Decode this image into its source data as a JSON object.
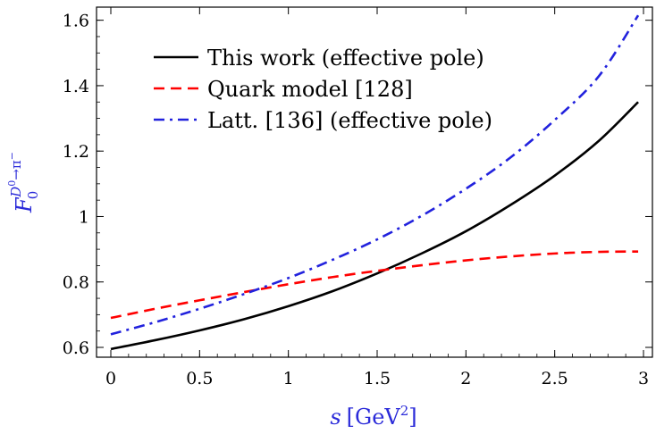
{
  "chart_data": {
    "type": "line",
    "title": "",
    "xlabel": {
      "main": "s",
      "unit_open": "[GeV",
      "unit_sup": "2",
      "unit_close": "]"
    },
    "ylabel": {
      "base": "F",
      "sub": "0",
      "sup_particle": "D",
      "sup_index": "0",
      "sup_arrow": "→π",
      "sup_charge": "−"
    },
    "xlim": [
      0,
      3
    ],
    "ylim": [
      0.57,
      1.64
    ],
    "x_ticks": [
      0,
      0.5,
      1,
      1.5,
      2,
      2.5,
      3
    ],
    "x_tick_labels": [
      "0",
      "0.5",
      "1",
      "1.5",
      "2",
      "2.5",
      "3"
    ],
    "y_ticks": [
      0.6,
      0.8,
      1.0,
      1.2,
      1.4,
      1.6
    ],
    "y_tick_labels": [
      "0.6",
      "0.8",
      "1",
      "1.2",
      "1.4",
      "1.6"
    ],
    "grid": false,
    "legend_position": "top-left",
    "series": [
      {
        "name": "This work (effective pole)",
        "color": "#000000",
        "dash": "solid",
        "x": [
          0,
          0.25,
          0.5,
          0.75,
          1.0,
          1.25,
          1.5,
          1.75,
          2.0,
          2.25,
          2.5,
          2.75,
          2.97
        ],
        "values": [
          0.595,
          0.622,
          0.652,
          0.686,
          0.726,
          0.772,
          0.826,
          0.887,
          0.955,
          1.035,
          1.125,
          1.232,
          1.35
        ]
      },
      {
        "name": "Quark model [128]",
        "color": "#ff0000",
        "dash": "dashed",
        "x": [
          0,
          0.25,
          0.5,
          0.75,
          1.0,
          1.25,
          1.5,
          1.75,
          2.0,
          2.25,
          2.5,
          2.75,
          2.97
        ],
        "values": [
          0.69,
          0.718,
          0.744,
          0.769,
          0.793,
          0.815,
          0.834,
          0.851,
          0.866,
          0.878,
          0.887,
          0.892,
          0.893
        ]
      },
      {
        "name": "Latt. [136] (effective pole)",
        "color": "#2222dd",
        "dash": "dashdot",
        "x": [
          0,
          0.25,
          0.5,
          0.75,
          1.0,
          1.25,
          1.5,
          1.75,
          2.0,
          2.25,
          2.5,
          2.75,
          2.97
        ],
        "values": [
          0.64,
          0.677,
          0.718,
          0.763,
          0.812,
          0.868,
          0.93,
          1.002,
          1.085,
          1.18,
          1.295,
          1.43,
          1.615
        ]
      }
    ]
  }
}
